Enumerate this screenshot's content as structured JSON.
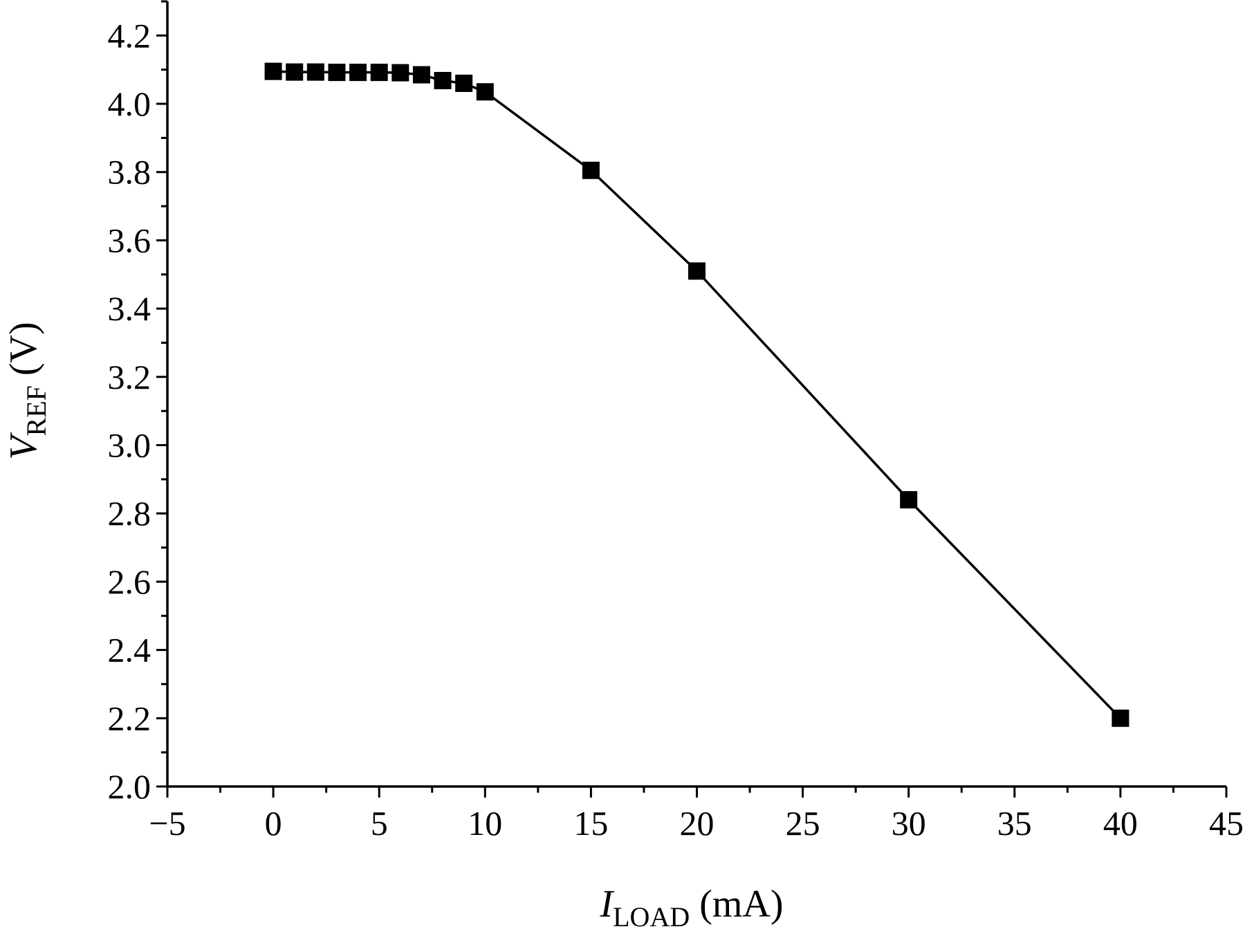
{
  "chart_data": {
    "type": "line",
    "title": "",
    "xlabel": {
      "symbol": "I",
      "subscript": "LOAD",
      "unit": " (mA)"
    },
    "ylabel": {
      "symbol": "V",
      "subscript": "REF",
      "unit": " (V)"
    },
    "xlim": [
      -5,
      45
    ],
    "ylim": [
      2.0,
      4.3
    ],
    "xticks": [
      "−5",
      "0",
      "5",
      "10",
      "15",
      "20",
      "25",
      "30",
      "35",
      "40",
      "45"
    ],
    "yticks": [
      "2.0",
      "2.2",
      "2.4",
      "2.6",
      "2.8",
      "3.0",
      "3.2",
      "3.4",
      "3.6",
      "3.8",
      "4.0",
      "4.2"
    ],
    "grid": false,
    "legend": null,
    "series": [
      {
        "marker": "square",
        "color": "#000000",
        "x": [
          0,
          1,
          2,
          3,
          4,
          5,
          6,
          7,
          8,
          9,
          10,
          15,
          20,
          30,
          40
        ],
        "y": [
          4.095,
          4.093,
          4.093,
          4.092,
          4.092,
          4.092,
          4.091,
          4.085,
          4.068,
          4.06,
          4.035,
          3.805,
          3.51,
          2.84,
          2.2
        ]
      }
    ]
  }
}
